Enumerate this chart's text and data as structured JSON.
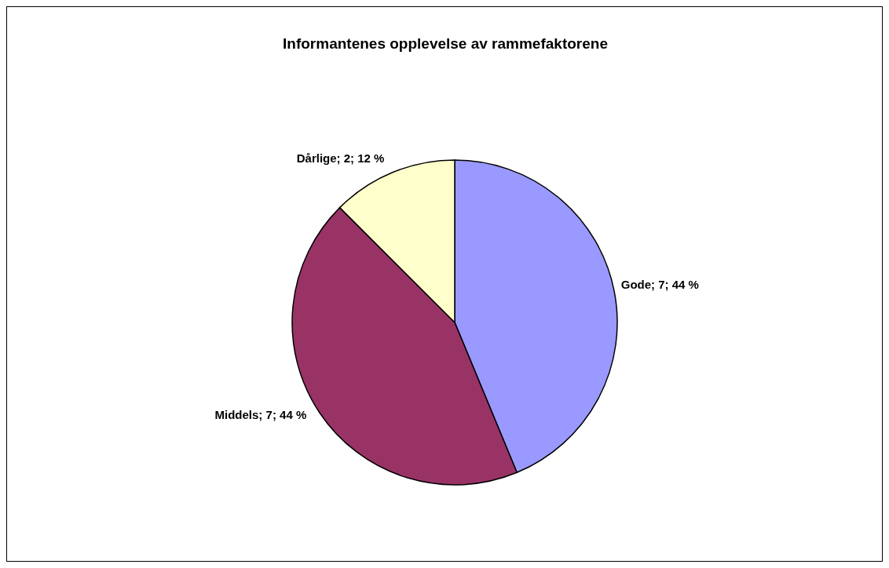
{
  "chart_data": {
    "type": "pie",
    "title": "Informantenes opplevelse av rammefaktorene",
    "categories": [
      "Gode",
      "Middels",
      "Dårlige"
    ],
    "values": [
      7,
      7,
      2
    ],
    "colors": [
      "#9999ff",
      "#993366",
      "#ffffcc"
    ],
    "value_labels": [
      "7; 44 %",
      "7; 44 %",
      "2; 12 %"
    ],
    "legend": false
  }
}
